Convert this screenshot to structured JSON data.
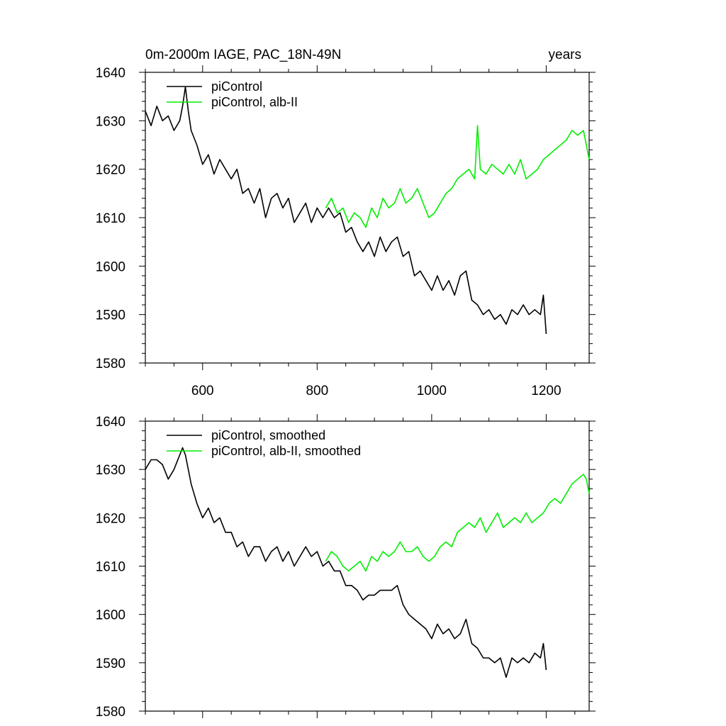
{
  "colors": {
    "black": "#000000",
    "green": "#00ee00"
  },
  "chart_data": [
    {
      "type": "line",
      "title_left": "0m-2000m IAGE, PAC_18N-49N",
      "title_right": "years",
      "xlim": [
        500,
        1275
      ],
      "ylim": [
        1580,
        1640
      ],
      "xticks": [
        600,
        800,
        1000,
        1200
      ],
      "xticklabels": [
        "600",
        "800",
        "1000",
        "1200"
      ],
      "yticks": [
        1580,
        1590,
        1600,
        1610,
        1620,
        1630,
        1640
      ],
      "yticklabels": [
        "1580",
        "1590",
        "1600",
        "1610",
        "1620",
        "1630",
        "1640"
      ],
      "show_xticklabels": true,
      "legend": "top-left",
      "series": [
        {
          "name": "piControl",
          "color": "#000000",
          "x": [
            500,
            510,
            520,
            530,
            540,
            550,
            560,
            565,
            570,
            575,
            580,
            590,
            600,
            610,
            620,
            630,
            640,
            650,
            660,
            670,
            680,
            690,
            700,
            710,
            720,
            730,
            740,
            750,
            760,
            770,
            780,
            790,
            800,
            810,
            820,
            830,
            840,
            850,
            860,
            870,
            880,
            890,
            900,
            910,
            920,
            930,
            940,
            950,
            960,
            970,
            980,
            990,
            1000,
            1010,
            1020,
            1030,
            1040,
            1050,
            1060,
            1070,
            1080,
            1090,
            1100,
            1110,
            1120,
            1130,
            1140,
            1150,
            1160,
            1170,
            1180,
            1190,
            1195,
            1200
          ],
          "y": [
            1632,
            1629,
            1633,
            1630,
            1631,
            1628,
            1630,
            1633,
            1637,
            1632,
            1628,
            1625,
            1621,
            1623,
            1619,
            1622,
            1620,
            1618,
            1620,
            1615,
            1616,
            1613,
            1616,
            1610,
            1614,
            1615,
            1612,
            1614,
            1609,
            1611,
            1613,
            1609,
            1612,
            1610,
            1612,
            1610,
            1611,
            1607,
            1608,
            1605,
            1603,
            1605,
            1602,
            1606,
            1603,
            1605,
            1606,
            1602,
            1603,
            1598,
            1599,
            1597,
            1595,
            1598,
            1595,
            1597,
            1594,
            1598,
            1599,
            1593,
            1592,
            1590,
            1591,
            1589,
            1590,
            1588,
            1591,
            1590,
            1592,
            1590,
            1591,
            1590,
            1594,
            1586
          ]
        },
        {
          "name": "piControl, alb-II",
          "color": "#00ee00",
          "x": [
            815,
            825,
            835,
            845,
            855,
            865,
            875,
            885,
            895,
            905,
            915,
            925,
            935,
            945,
            955,
            965,
            975,
            985,
            995,
            1005,
            1015,
            1025,
            1035,
            1045,
            1055,
            1065,
            1075,
            1080,
            1085,
            1095,
            1105,
            1115,
            1125,
            1135,
            1145,
            1155,
            1165,
            1175,
            1185,
            1195,
            1205,
            1215,
            1225,
            1235,
            1245,
            1255,
            1265,
            1270,
            1275
          ],
          "y": [
            1612,
            1614,
            1611,
            1612,
            1609,
            1611,
            1610,
            1608,
            1612,
            1610,
            1614,
            1612,
            1613,
            1616,
            1613,
            1614,
            1616,
            1613,
            1610,
            1611,
            1613,
            1615,
            1616,
            1618,
            1619,
            1620,
            1618,
            1629,
            1620,
            1619,
            1621,
            1620,
            1619,
            1621,
            1619,
            1622,
            1618,
            1619,
            1620,
            1622,
            1623,
            1624,
            1625,
            1626,
            1628,
            1627,
            1628,
            1625,
            1622
          ]
        }
      ]
    },
    {
      "type": "line",
      "xlim": [
        500,
        1275
      ],
      "ylim": [
        1580,
        1640
      ],
      "xticks": [
        600,
        800,
        1000,
        1200
      ],
      "yticks": [
        1580,
        1590,
        1600,
        1610,
        1620,
        1630,
        1640
      ],
      "yticklabels": [
        "1580",
        "1590",
        "1600",
        "1610",
        "1620",
        "1630",
        "1640"
      ],
      "show_xticklabels": false,
      "legend": "top-left",
      "series": [
        {
          "name": "piControl, smoothed",
          "color": "#000000",
          "x": [
            500,
            510,
            520,
            530,
            540,
            550,
            560,
            565,
            570,
            575,
            580,
            590,
            600,
            610,
            620,
            630,
            640,
            650,
            660,
            670,
            680,
            690,
            700,
            710,
            720,
            730,
            740,
            750,
            760,
            770,
            780,
            790,
            800,
            810,
            820,
            830,
            840,
            850,
            860,
            870,
            880,
            890,
            900,
            910,
            920,
            930,
            940,
            950,
            960,
            970,
            980,
            990,
            1000,
            1010,
            1020,
            1030,
            1040,
            1050,
            1060,
            1070,
            1080,
            1090,
            1100,
            1110,
            1120,
            1130,
            1140,
            1150,
            1160,
            1170,
            1180,
            1190,
            1195,
            1200
          ],
          "y": [
            1630,
            1632,
            1632,
            1631,
            1628,
            1630,
            1633,
            1634.5,
            1633,
            1630,
            1627,
            1623,
            1620,
            1622,
            1619,
            1620,
            1617,
            1617,
            1614,
            1615,
            1612,
            1614,
            1614,
            1611,
            1613,
            1614,
            1611,
            1613,
            1610,
            1612,
            1614,
            1612,
            1613,
            1610,
            1611,
            1609,
            1609,
            1606,
            1606,
            1605,
            1603,
            1604,
            1604,
            1605,
            1605,
            1605,
            1606,
            1602,
            1600,
            1599,
            1598,
            1597,
            1595,
            1598,
            1596,
            1597,
            1595,
            1596,
            1599,
            1594,
            1593,
            1591,
            1591,
            1590,
            1591,
            1587,
            1591,
            1590,
            1591,
            1590,
            1592,
            1591,
            1594,
            1588.5
          ]
        },
        {
          "name": "piControl, alb-II, smoothed",
          "color": "#00ee00",
          "x": [
            815,
            825,
            835,
            845,
            855,
            865,
            875,
            885,
            895,
            905,
            915,
            925,
            935,
            945,
            955,
            965,
            975,
            985,
            995,
            1005,
            1015,
            1025,
            1035,
            1045,
            1055,
            1065,
            1075,
            1085,
            1095,
            1105,
            1115,
            1125,
            1135,
            1145,
            1155,
            1165,
            1175,
            1185,
            1195,
            1205,
            1215,
            1225,
            1235,
            1245,
            1255,
            1265,
            1270,
            1275
          ],
          "y": [
            1611,
            1613,
            1612,
            1610,
            1609,
            1610,
            1611,
            1609,
            1612,
            1611,
            1613,
            1612,
            1613,
            1615,
            1613,
            1613,
            1614,
            1612,
            1611,
            1612,
            1614,
            1615,
            1614,
            1617,
            1618,
            1619,
            1618,
            1620,
            1617,
            1619,
            1621,
            1618,
            1619,
            1620,
            1619,
            1621,
            1619,
            1620,
            1621,
            1623,
            1624,
            1623,
            1625,
            1627,
            1628,
            1629,
            1628,
            1625
          ]
        }
      ]
    }
  ]
}
